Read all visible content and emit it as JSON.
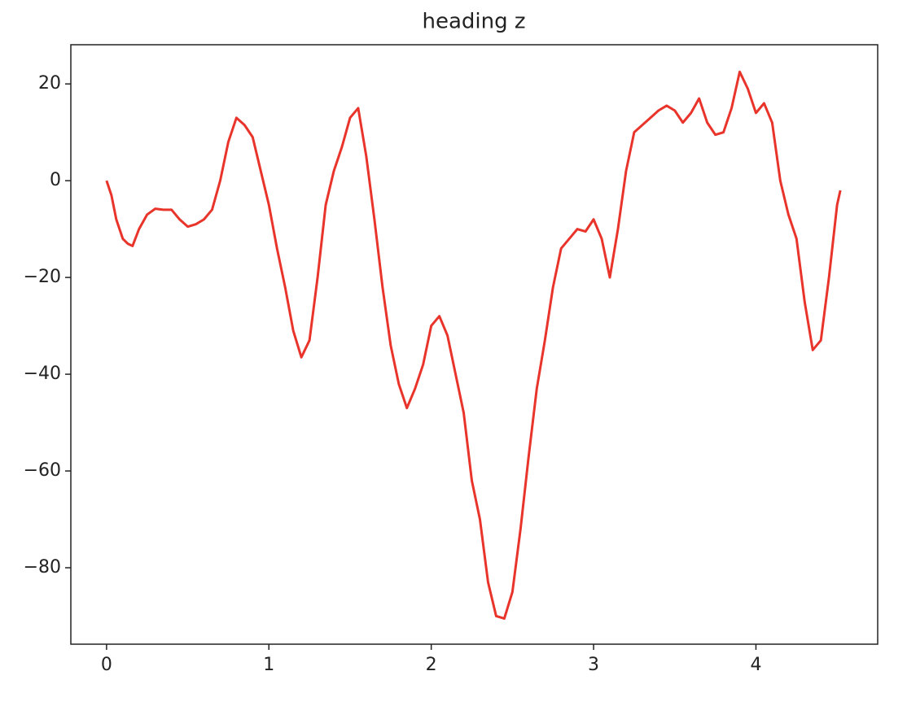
{
  "chart_data": {
    "type": "line",
    "title": "heading z",
    "x": [
      0,
      0.03,
      0.06,
      0.1,
      0.13,
      0.16,
      0.2,
      0.25,
      0.3,
      0.35,
      0.4,
      0.45,
      0.5,
      0.55,
      0.6,
      0.65,
      0.7,
      0.75,
      0.8,
      0.85,
      0.9,
      0.95,
      1.0,
      1.05,
      1.1,
      1.15,
      1.2,
      1.25,
      1.3,
      1.35,
      1.4,
      1.45,
      1.5,
      1.55,
      1.6,
      1.65,
      1.7,
      1.75,
      1.8,
      1.85,
      1.9,
      1.95,
      2.0,
      2.05,
      2.1,
      2.15,
      2.2,
      2.25,
      2.3,
      2.35,
      2.4,
      2.45,
      2.5,
      2.55,
      2.6,
      2.65,
      2.7,
      2.75,
      2.8,
      2.85,
      2.9,
      2.95,
      3.0,
      3.05,
      3.1,
      3.15,
      3.2,
      3.25,
      3.3,
      3.35,
      3.4,
      3.45,
      3.5,
      3.55,
      3.6,
      3.65,
      3.7,
      3.75,
      3.8,
      3.85,
      3.9,
      3.95,
      4.0,
      4.05,
      4.1,
      4.15,
      4.2,
      4.25,
      4.3,
      4.35,
      4.4,
      4.45,
      4.5,
      4.52
    ],
    "series": [
      {
        "name": "heading z",
        "color": "#e8342a",
        "values": [
          0,
          -3,
          -8,
          -12,
          -13,
          -13.5,
          -10,
          -7,
          -5.8,
          -6,
          -6,
          -8,
          -9.5,
          -9,
          -8,
          -6,
          0,
          8,
          13,
          11.5,
          9,
          2,
          -5,
          -14,
          -22,
          -31,
          -36.5,
          -33,
          -20,
          -5,
          2,
          7,
          13,
          15,
          5,
          -8,
          -22,
          -34,
          -42,
          -47,
          -43,
          -38,
          -30,
          -28,
          -32,
          -40,
          -48,
          -62,
          -70,
          -83,
          -90,
          -90.5,
          -85,
          -72,
          -57,
          -43,
          -33,
          -22,
          -14,
          -12,
          -10,
          -10.5,
          -8,
          -12,
          -20,
          -10,
          2,
          10,
          11.5,
          13,
          14.5,
          15.5,
          14.5,
          12,
          14,
          17,
          12,
          9.5,
          10,
          15,
          22.5,
          19,
          14,
          16,
          12,
          0,
          -7,
          -12,
          -25,
          -35,
          -33,
          -20,
          -5,
          -2
        ]
      }
    ],
    "xlim": [
      -0.22,
      4.75
    ],
    "ylim": [
      -95.8,
      28.1
    ],
    "xticks": [
      0,
      1,
      2,
      3,
      4
    ],
    "yticks": [
      {
        "value": -80,
        "label": "−80"
      },
      {
        "value": -60,
        "label": "−60"
      },
      {
        "value": -40,
        "label": "−40"
      },
      {
        "value": -20,
        "label": "−20"
      },
      0,
      20
    ],
    "grid": false
  }
}
